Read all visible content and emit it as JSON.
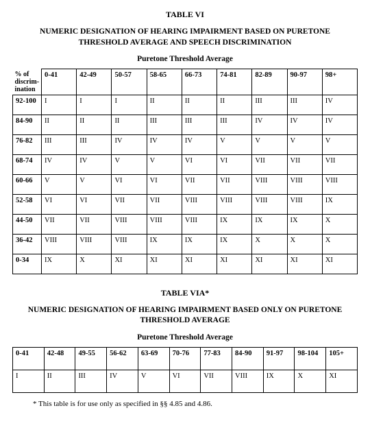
{
  "t1": {
    "title": "TABLE VI",
    "heading": "NUMERIC DESIGNATION OF HEARING IMPAIRMENT BASED ON PURETONE THRESHOLD AVERAGE AND SPEECH DISCRIMINATION",
    "subhead": "Puretone Threshold Average",
    "corner_lines": [
      "% of",
      "discrim-",
      "ination"
    ],
    "cols": [
      "0-41",
      "42-49",
      "50-57",
      "58-65",
      "66-73",
      "74-81",
      "82-89",
      "90-97",
      "98+"
    ],
    "rows": [
      {
        "h": "92-100",
        "v": [
          "I",
          "I",
          "I",
          "II",
          "II",
          "II",
          "III",
          "III",
          "IV"
        ]
      },
      {
        "h": "84-90",
        "v": [
          "II",
          "II",
          "II",
          "III",
          "III",
          "III",
          "IV",
          "IV",
          "IV"
        ]
      },
      {
        "h": "76-82",
        "v": [
          "III",
          "III",
          "IV",
          "IV",
          "IV",
          "V",
          "V",
          "V",
          "V"
        ]
      },
      {
        "h": "68-74",
        "v": [
          "IV",
          "IV",
          "V",
          "V",
          "VI",
          "VI",
          "VII",
          "VII",
          "VII"
        ]
      },
      {
        "h": "60-66",
        "v": [
          "V",
          "V",
          "VI",
          "VI",
          "VII",
          "VII",
          "VIII",
          "VIII",
          "VIII"
        ]
      },
      {
        "h": "52-58",
        "v": [
          "VI",
          "VI",
          "VII",
          "VII",
          "VIII",
          "VIII",
          "VIII",
          "VIII",
          "IX"
        ]
      },
      {
        "h": "44-50",
        "v": [
          "VII",
          "VII",
          "VIII",
          "VIII",
          "VIII",
          "IX",
          "IX",
          "IX",
          "X"
        ]
      },
      {
        "h": "36-42",
        "v": [
          "VIII",
          "VIII",
          "VIII",
          "IX",
          "IX",
          "IX",
          "X",
          "X",
          "X"
        ]
      },
      {
        "h": "0-34",
        "v": [
          "IX",
          "X",
          "XI",
          "XI",
          "XI",
          "XI",
          "XI",
          "XI",
          "XI"
        ]
      }
    ]
  },
  "t2": {
    "title": "TABLE VIA*",
    "heading": "NUMERIC DESIGNATION OF HEARING IMPAIRMENT BASED ONLY ON PURETONE THRESHOLD AVERAGE",
    "subhead": "Puretone Threshold Average",
    "cols": [
      "0-41",
      "42-48",
      "49-55",
      "56-62",
      "63-69",
      "70-76",
      "77-83",
      "84-90",
      "91-97",
      "98-104",
      "105+"
    ],
    "vals": [
      "I",
      "II",
      "III",
      "IV",
      "V",
      "VI",
      "VII",
      "VIII",
      "IX",
      "X",
      "XI"
    ]
  },
  "footnote": "* This table is for use only as specified in §§ 4.85 and 4.86."
}
